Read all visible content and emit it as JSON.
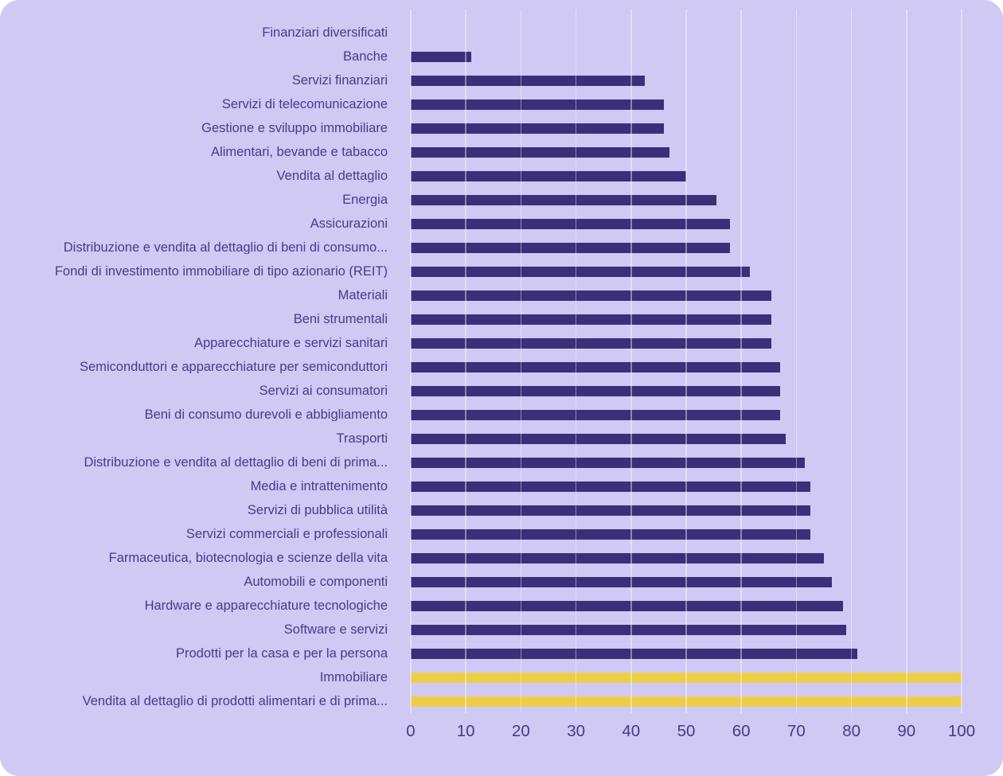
{
  "colors": {
    "page_background": "#ffffff",
    "card_background": "#cfc9f3",
    "bar_primary": "#3b2f7a",
    "bar_highlight": "#edce49",
    "gridline": "rgba(255,255,255,0.42)",
    "label_text": "#463b8d",
    "tick_text": "#453a8b"
  },
  "chart_data": {
    "type": "bar",
    "orientation": "horizontal",
    "title": "",
    "xlabel": "",
    "ylabel": "",
    "xlim": [
      0,
      100
    ],
    "x_ticks": [
      0,
      10,
      20,
      30,
      40,
      50,
      60,
      70,
      80,
      90,
      100
    ],
    "grid": true,
    "legend": false,
    "categories": [
      "Finanziari diversificati",
      "Banche",
      "Servizi finanziari",
      "Servizi di telecomunicazione",
      "Gestione e sviluppo immobiliare",
      "Alimentari, bevande e tabacco",
      "Vendita al dettaglio",
      "Energia",
      "Assicurazioni",
      "Distribuzione e vendita al dettaglio di beni di consumo...",
      "Fondi di investimento immobiliare di tipo azionario (REIT)",
      "Materiali",
      "Beni strumentali",
      "Apparecchiature e servizi sanitari",
      "Semiconduttori e apparecchiature per semiconduttori",
      "Servizi ai consumatori",
      "Beni di consumo durevoli e abbigliamento",
      "Trasporti",
      "Distribuzione e vendita al dettaglio di beni di prima...",
      "Media e intrattenimento",
      "Servizi di pubblica utilità",
      "Servizi commerciali e professionali",
      "Farmaceutica, biotecnologia e scienze della vita",
      "Automobili e componenti",
      "Hardware e apparecchiature tecnologiche",
      "Software e servizi",
      "Prodotti per la casa e per la persona",
      "Immobiliare",
      "Vendita al dettaglio di prodotti alimentari e di prima..."
    ],
    "values": [
      0,
      11,
      42.5,
      46,
      46,
      47,
      50,
      55.5,
      58,
      58,
      61.5,
      65.5,
      65.5,
      65.5,
      67,
      67,
      67,
      68,
      71.5,
      72.5,
      72.5,
      72.5,
      75,
      76.5,
      78.5,
      79,
      81,
      100,
      100
    ],
    "highlight_indexes": [
      27,
      28
    ]
  }
}
